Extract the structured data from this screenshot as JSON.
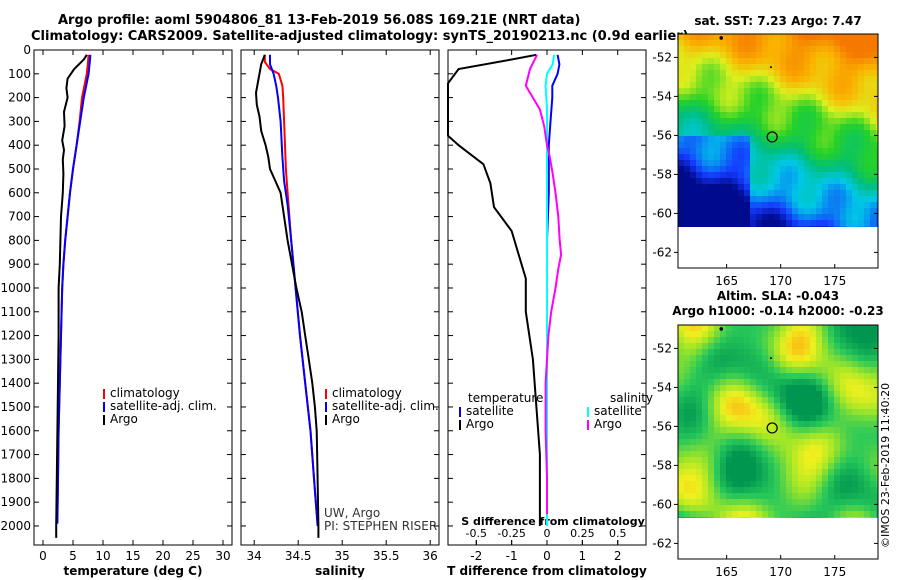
{
  "header": {
    "title_line1": "Argo profile: aoml 5904806_81 13-Feb-2019 56.08S 169.21E (NRT data)",
    "title_line2": "Climatology: CARS2009. Satellite-adjusted climatology: synTS_20190213.nc (0.9d earlier)"
  },
  "colors": {
    "climatology": "#ff0000",
    "satellite": "#0000ff",
    "argo": "#000000",
    "sat_salinity": "#00ffff",
    "argo_salinity_diff": "#ff00ff"
  },
  "depth_axis": {
    "ticks": [
      "0",
      "100",
      "200",
      "300",
      "400",
      "500",
      "600",
      "700",
      "800",
      "900",
      "1000",
      "1100",
      "1200",
      "1300",
      "1400",
      "1500",
      "1600",
      "1700",
      "1800",
      "1900",
      "2000"
    ],
    "range": [
      0,
      2080
    ]
  },
  "chart_data": [
    {
      "type": "line",
      "name": "temperature_profile",
      "xlabel": "temperature (deg C)",
      "xticks": [
        "0",
        "5",
        "10",
        "15",
        "20",
        "25",
        "30"
      ],
      "xlim": [
        -1.5,
        31.5
      ],
      "ylim": [
        0,
        2080
      ],
      "legend": [
        "climatology",
        "satellite-adj. clim.",
        "Argo"
      ],
      "series": [
        {
          "name": "climatology",
          "color": "#ff0000",
          "points": [
            [
              7.6,
              20
            ],
            [
              7.5,
              50
            ],
            [
              7.3,
              100
            ],
            [
              6.9,
              150
            ],
            [
              6.5,
              200
            ],
            [
              6.1,
              300
            ],
            [
              5.6,
              400
            ],
            [
              5.0,
              500
            ],
            [
              4.5,
              600
            ],
            [
              4.1,
              700
            ],
            [
              3.7,
              800
            ],
            [
              3.4,
              900
            ],
            [
              3.2,
              1000
            ],
            [
              3.0,
              1200
            ],
            [
              2.8,
              1400
            ],
            [
              2.6,
              1600
            ],
            [
              2.5,
              1800
            ],
            [
              2.4,
              1950
            ]
          ]
        },
        {
          "name": "satellite-adj. clim.",
          "color": "#0000ff",
          "points": [
            [
              7.9,
              20
            ],
            [
              7.8,
              50
            ],
            [
              7.6,
              100
            ],
            [
              7.2,
              150
            ],
            [
              6.8,
              200
            ],
            [
              6.2,
              300
            ],
            [
              5.6,
              400
            ],
            [
              5.0,
              500
            ],
            [
              4.5,
              600
            ],
            [
              4.1,
              700
            ],
            [
              3.7,
              800
            ],
            [
              3.4,
              900
            ],
            [
              3.2,
              1000
            ],
            [
              3.0,
              1200
            ],
            [
              2.8,
              1400
            ],
            [
              2.6,
              1600
            ],
            [
              2.5,
              1800
            ],
            [
              2.4,
              1990
            ]
          ]
        },
        {
          "name": "Argo",
          "color": "#000000",
          "points": [
            [
              7.3,
              20
            ],
            [
              6.8,
              40
            ],
            [
              5.2,
              80
            ],
            [
              4.1,
              120
            ],
            [
              3.9,
              160
            ],
            [
              4.1,
              200
            ],
            [
              3.5,
              260
            ],
            [
              3.6,
              320
            ],
            [
              3.2,
              380
            ],
            [
              3.5,
              420
            ],
            [
              3.3,
              460
            ],
            [
              3.4,
              520
            ],
            [
              3.3,
              600
            ],
            [
              3.0,
              700
            ],
            [
              2.9,
              800
            ],
            [
              2.8,
              900
            ],
            [
              2.6,
              1000
            ],
            [
              2.6,
              1200
            ],
            [
              2.5,
              1400
            ],
            [
              2.4,
              1600
            ],
            [
              2.3,
              1800
            ],
            [
              2.2,
              2000
            ],
            [
              2.2,
              2050
            ]
          ]
        }
      ]
    },
    {
      "type": "line",
      "name": "salinity_profile",
      "xlabel": "salinity",
      "xticks": [
        "34",
        "34.5",
        "35",
        "35.5",
        "36"
      ],
      "xlim": [
        33.85,
        36.1
      ],
      "ylim": [
        0,
        2080
      ],
      "legend": [
        "climatology",
        "satellite-adj. clim.",
        "Argo"
      ],
      "annotation": [
        "UW, Argo",
        "PI: STEPHEN RISER"
      ],
      "series": [
        {
          "name": "climatology",
          "color": "#ff0000",
          "points": [
            [
              34.12,
              20
            ],
            [
              34.12,
              50
            ],
            [
              34.18,
              80
            ],
            [
              34.28,
              100
            ],
            [
              34.32,
              150
            ],
            [
              34.33,
              200
            ],
            [
              34.34,
              300
            ],
            [
              34.36,
              500
            ],
            [
              34.38,
              600
            ],
            [
              34.42,
              800
            ],
            [
              34.47,
              1000
            ],
            [
              34.52,
              1200
            ],
            [
              34.58,
              1400
            ],
            [
              34.64,
              1600
            ],
            [
              34.68,
              1800
            ],
            [
              34.71,
              1950
            ]
          ]
        },
        {
          "name": "satellite-adj. clim.",
          "color": "#0000ff",
          "points": [
            [
              34.18,
              20
            ],
            [
              34.18,
              60
            ],
            [
              34.22,
              100
            ],
            [
              34.25,
              150
            ],
            [
              34.27,
              200
            ],
            [
              34.3,
              300
            ],
            [
              34.32,
              450
            ],
            [
              34.34,
              550
            ],
            [
              34.38,
              650
            ],
            [
              34.42,
              800
            ],
            [
              34.47,
              1000
            ],
            [
              34.52,
              1200
            ],
            [
              34.58,
              1400
            ],
            [
              34.64,
              1600
            ],
            [
              34.68,
              1800
            ],
            [
              34.72,
              2000
            ]
          ]
        },
        {
          "name": "Argo",
          "color": "#000000",
          "points": [
            [
              34.12,
              20
            ],
            [
              34.08,
              60
            ],
            [
              34.05,
              120
            ],
            [
              34.02,
              180
            ],
            [
              34.03,
              230
            ],
            [
              34.06,
              280
            ],
            [
              34.08,
              340
            ],
            [
              34.13,
              400
            ],
            [
              34.16,
              450
            ],
            [
              34.18,
              500
            ],
            [
              34.24,
              550
            ],
            [
              34.3,
              600
            ],
            [
              34.34,
              700
            ],
            [
              34.38,
              800
            ],
            [
              34.43,
              900
            ],
            [
              34.48,
              1000
            ],
            [
              34.54,
              1100
            ],
            [
              34.58,
              1200
            ],
            [
              34.62,
              1300
            ],
            [
              34.66,
              1400
            ],
            [
              34.69,
              1500
            ],
            [
              34.71,
              1600
            ],
            [
              34.72,
              1800
            ],
            [
              34.73,
              2000
            ],
            [
              34.73,
              2050
            ]
          ]
        }
      ]
    },
    {
      "type": "line",
      "name": "difference_from_climatology",
      "xlabel": "T difference from climatology",
      "xlabel_top": "S difference from climatology",
      "xticks": [
        "-2",
        "-1",
        "0",
        "1",
        "2"
      ],
      "xticks_top": [
        "-0.5",
        "-0.25",
        "0",
        "0.25",
        "0.5"
      ],
      "xlim": [
        -2.8,
        2.8
      ],
      "ylim": [
        0,
        2080
      ],
      "legend_left_title": "temperature",
      "legend_left": [
        "satellite",
        "Argo"
      ],
      "legend_right_title": "salinity",
      "legend_right": [
        "satellite",
        "Argo"
      ],
      "series": [
        {
          "name": "temperature satellite",
          "color": "#0000ff",
          "points": [
            [
              0.3,
              20
            ],
            [
              0.35,
              60
            ],
            [
              0.3,
              100
            ],
            [
              0.15,
              150
            ],
            [
              0.15,
              200
            ],
            [
              0.1,
              300
            ],
            [
              0.05,
              400
            ],
            [
              0.05,
              600
            ],
            [
              0.0,
              800
            ],
            [
              0.0,
              1200
            ],
            [
              0.0,
              1600
            ],
            [
              0.0,
              2000
            ]
          ]
        },
        {
          "name": "temperature Argo",
          "color": "#000000",
          "points": [
            [
              -0.3,
              20
            ],
            [
              -1.0,
              40
            ],
            [
              -2.5,
              80
            ],
            [
              -2.8,
              140
            ],
            [
              -2.8,
              200
            ],
            [
              -2.8,
              300
            ],
            [
              -2.8,
              360
            ],
            [
              -2.5,
              400
            ],
            [
              -1.8,
              480
            ],
            [
              -1.6,
              560
            ],
            [
              -1.5,
              660
            ],
            [
              -1.0,
              760
            ],
            [
              -0.8,
              860
            ],
            [
              -0.6,
              960
            ],
            [
              -0.6,
              1100
            ],
            [
              -0.4,
              1300
            ],
            [
              -0.3,
              1500
            ],
            [
              -0.2,
              1700
            ],
            [
              -0.2,
              1900
            ],
            [
              -0.2,
              2000
            ]
          ]
        },
        {
          "name": "salinity satellite",
          "color": "#00ffff",
          "points": [
            [
              0.05,
              20
            ],
            [
              0.04,
              60
            ],
            [
              0.0,
              100
            ],
            [
              -0.01,
              150
            ],
            [
              0.0,
              250
            ],
            [
              0.0,
              400
            ],
            [
              0.0,
              600
            ],
            [
              0.0,
              1000
            ],
            [
              0.0,
              1400
            ],
            [
              0.0,
              1800
            ],
            [
              0.0,
              2000
            ]
          ]
        },
        {
          "name": "salinity Argo",
          "color": "#ff00ff",
          "points": [
            [
              -0.07,
              20
            ],
            [
              -0.12,
              80
            ],
            [
              -0.15,
              150
            ],
            [
              -0.1,
              200
            ],
            [
              -0.05,
              250
            ],
            [
              -0.02,
              320
            ],
            [
              0.0,
              400
            ],
            [
              0.02,
              450
            ],
            [
              0.04,
              520
            ],
            [
              0.06,
              600
            ],
            [
              0.08,
              700
            ],
            [
              0.09,
              800
            ],
            [
              0.1,
              860
            ],
            [
              0.08,
              920
            ],
            [
              0.06,
              1000
            ],
            [
              0.03,
              1100
            ],
            [
              0.01,
              1200
            ],
            [
              0.0,
              1300
            ],
            [
              -0.01,
              1400
            ],
            [
              -0.01,
              1600
            ],
            [
              0.0,
              1800
            ],
            [
              0.0,
              1950
            ]
          ]
        }
      ]
    }
  ],
  "maps": [
    {
      "name": "sst_map",
      "title": "sat. SST: 7.23 Argo: 7.47",
      "yticks": [
        "-52",
        "-54",
        "-56",
        "-58",
        "-60",
        "-62"
      ],
      "xticks": [
        "165",
        "170",
        "175"
      ],
      "lat_range": [
        -62.8,
        -50.8
      ],
      "lon_range": [
        160.5,
        179
      ],
      "argo_position": [
        169.21,
        -56.08
      ]
    },
    {
      "name": "sla_map",
      "title_line1": "Altim. SLA: -0.043",
      "title_line2": "Argo h1000: -0.14 h2000: -0.23",
      "yticks": [
        "-52",
        "-54",
        "-56",
        "-58",
        "-60",
        "-62"
      ],
      "xticks": [
        "165",
        "170",
        "175"
      ],
      "lat_range": [
        -62.8,
        -50.8
      ],
      "lon_range": [
        160.5,
        179
      ],
      "argo_position": [
        169.21,
        -56.08
      ]
    }
  ],
  "footer": {
    "imos_stamp": "©IMOS 23-Feb-2019 11:40:20"
  }
}
